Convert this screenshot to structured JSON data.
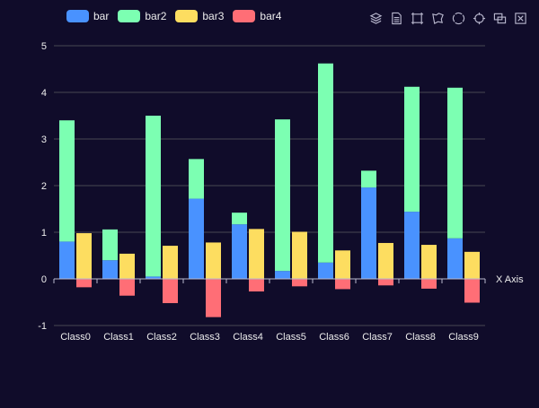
{
  "chart_data": {
    "type": "bar",
    "categories": [
      "Class0",
      "Class1",
      "Class2",
      "Class3",
      "Class4",
      "Class5",
      "Class6",
      "Class7",
      "Class8",
      "Class9"
    ],
    "series": [
      {
        "name": "bar",
        "stack": "one",
        "color": "#4992ff",
        "values": [
          0.8,
          0.4,
          0.05,
          1.72,
          1.17,
          0.17,
          0.35,
          1.96,
          1.44,
          0.87
        ]
      },
      {
        "name": "bar2",
        "stack": "one",
        "color": "#7cffb2",
        "values": [
          2.6,
          0.66,
          3.45,
          0.85,
          0.25,
          3.25,
          4.27,
          0.36,
          2.68,
          3.23
        ]
      },
      {
        "name": "bar3",
        "stack": "two",
        "color": "#fddd60",
        "values": [
          0.98,
          0.54,
          0.71,
          0.78,
          1.07,
          1.01,
          0.61,
          0.77,
          0.73,
          0.58
        ]
      },
      {
        "name": "bar4",
        "stack": "two",
        "color": "#ff6e76",
        "values": [
          -0.18,
          -0.36,
          -0.52,
          -0.82,
          -0.27,
          -0.16,
          -0.22,
          -0.14,
          -0.21,
          -0.51
        ]
      }
    ],
    "xlabel": "X Axis",
    "ylabel": "",
    "ylim": [
      -1,
      5
    ],
    "yticks": [
      "-1",
      "0",
      "1",
      "2",
      "3",
      "4",
      "5"
    ],
    "grid": true,
    "legend_position": "top-left"
  },
  "colors": {
    "background": "#100c2a",
    "gridline": "#484753",
    "axis": "#b9b8ce",
    "text": "#eeeeee"
  },
  "toolbox": {
    "icons": [
      "stack-icon",
      "data-view-icon",
      "rect-select-icon",
      "lasso-select-icon",
      "keep-select-icon",
      "clear-select-icon",
      "toggle-icon",
      "restore-icon"
    ]
  }
}
